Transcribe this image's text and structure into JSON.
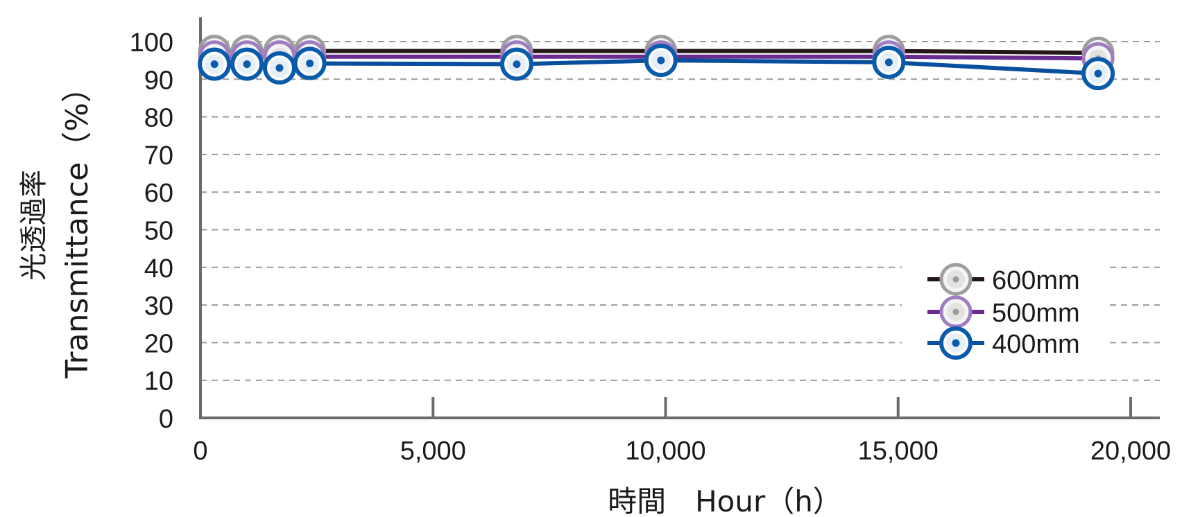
{
  "chart_data": {
    "type": "line",
    "xlabel": "時間　Hour（h）",
    "ylabel_jp": "光透過率",
    "ylabel_en": "Transmittance（%）",
    "xlim": [
      0,
      20000
    ],
    "ylim": [
      0,
      100
    ],
    "x_ticks": [
      0,
      5000,
      10000,
      15000,
      20000
    ],
    "x_tick_labels": [
      "0",
      "5,000",
      "10,000",
      "15,000",
      "20,000"
    ],
    "y_ticks": [
      0,
      10,
      20,
      30,
      40,
      50,
      60,
      70,
      80,
      90,
      100
    ],
    "y_tick_labels": [
      "0",
      "10",
      "20",
      "30",
      "40",
      "50",
      "60",
      "70",
      "80",
      "90",
      "100"
    ],
    "grid": "horizontal dashed",
    "legend_position": "lower-right",
    "series": [
      {
        "name": "600mm",
        "line_color": "#231815",
        "marker_ring": "#9e9e9e",
        "x": [
          300,
          1000,
          1700,
          2350,
          6800,
          9900,
          14800,
          19300
        ],
        "values": [
          97.5,
          97.5,
          97.5,
          97.5,
          97.5,
          97.5,
          97.5,
          97.0
        ]
      },
      {
        "name": "500mm",
        "line_color": "#6a2c8f",
        "marker_ring": "#a07cc0",
        "x": [
          300,
          1000,
          1700,
          2350,
          6800,
          9900,
          14800,
          19300
        ],
        "values": [
          96.0,
          96.0,
          96.0,
          96.0,
          96.0,
          96.0,
          96.0,
          95.5
        ]
      },
      {
        "name": "400mm",
        "line_color": "#0a4f9e",
        "marker_ring": "#0a5cab",
        "x": [
          300,
          1000,
          1700,
          2350,
          6800,
          9900,
          14800,
          19300
        ],
        "values": [
          94.0,
          94.0,
          93.0,
          94.2,
          94.0,
          95.0,
          94.5,
          91.5
        ]
      }
    ]
  }
}
